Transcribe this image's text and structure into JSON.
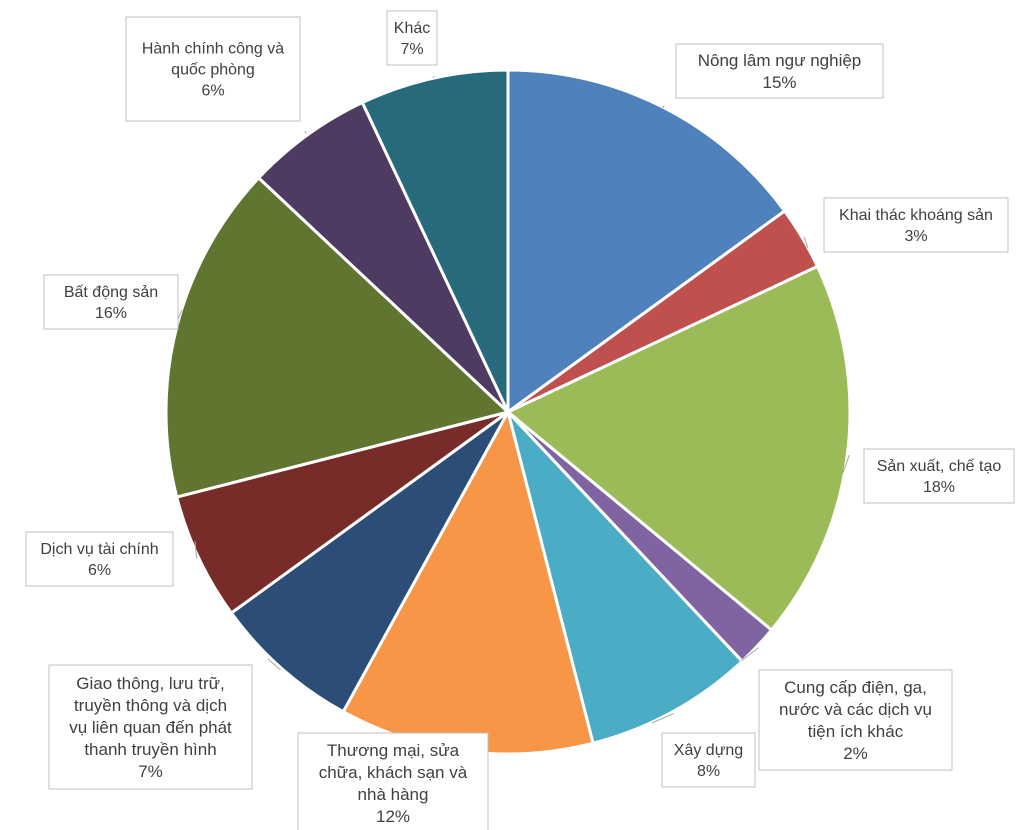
{
  "chart_data": {
    "type": "pie",
    "title": "",
    "slices": [
      {
        "label": "Nông lâm ngư nghiệp",
        "value": 15,
        "pct": "15%",
        "color": "#4F81BD"
      },
      {
        "label": "Khai thác khoáng sản",
        "value": 3,
        "pct": "3%",
        "color": "#C0504D"
      },
      {
        "label": "Sản xuất, chế tạo",
        "value": 18,
        "pct": "18%",
        "color": "#9BBB59"
      },
      {
        "label": "Cung cấp điện, ga, nước và các dịch vụ tiện ích khác",
        "value": 2,
        "pct": "2%",
        "color": "#8064A2"
      },
      {
        "label": "Xây dựng",
        "value": 8,
        "pct": "8%",
        "color": "#4BACC6"
      },
      {
        "label": "Thương mại, sửa chữa, khách sạn và nhà hàng",
        "value": 12,
        "pct": "12%",
        "color": "#F79646"
      },
      {
        "label": "Giao thông, lưu trữ, truyền thông và dịch vụ liên quan đến phát thanh truyền hình",
        "value": 7,
        "pct": "7%",
        "color": "#2C4D75"
      },
      {
        "label": "Dịch vụ tài chính",
        "value": 6,
        "pct": "6%",
        "color": "#772C2A"
      },
      {
        "label": "Bất động sản",
        "value": 16,
        "pct": "16%",
        "color": "#5F7530"
      },
      {
        "label": "Hành chính công và quốc phòng",
        "value": 6,
        "pct": "6%",
        "color": "#4D3B62"
      },
      {
        "label": "Khác",
        "value": 7,
        "pct": "7%",
        "color": "#276A7C"
      }
    ]
  }
}
